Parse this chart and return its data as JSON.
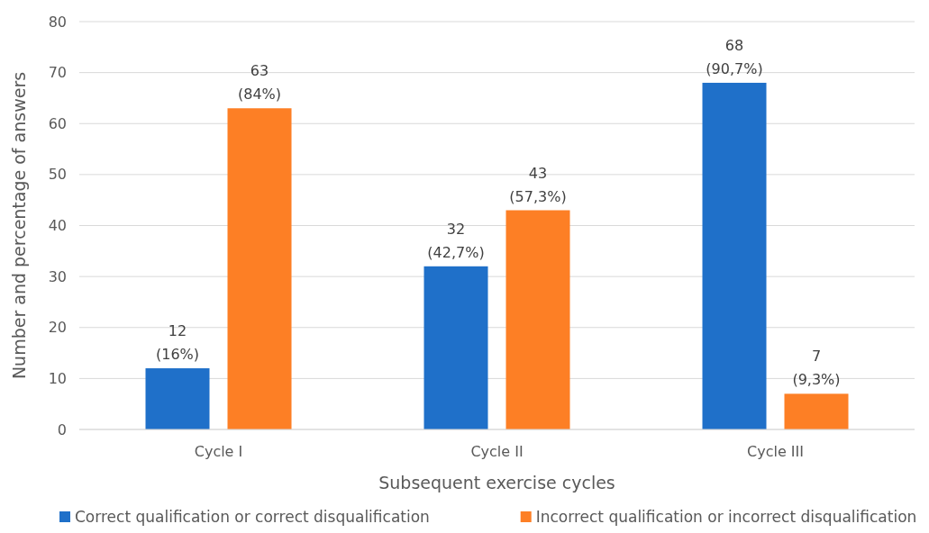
{
  "chart_data": {
    "type": "bar",
    "xlabel": "Subsequent exercise cycles",
    "ylabel": "Number and percentage of answers",
    "categories": [
      "Cycle I",
      "Cycle II",
      "Cycle III"
    ],
    "series": [
      {
        "name": "Correct qualification or correct disqualification",
        "color": "#1f70c9",
        "values": [
          12,
          32,
          68
        ],
        "value_labels": [
          "12 (16%)",
          "32 (42,7%)",
          "68 (90,7%)"
        ]
      },
      {
        "name": "Incorrect qualification or incorrect disqualification",
        "color": "#fd7f25",
        "values": [
          63,
          43,
          7
        ],
        "value_labels": [
          "63 (84%)",
          "43 (57,3%)",
          "7 (9,3%)"
        ]
      }
    ],
    "ylim": [
      0,
      80
    ],
    "yticks": [
      0,
      10,
      20,
      30,
      40,
      50,
      60,
      70,
      80
    ],
    "grid": "y",
    "legend": "bottom"
  }
}
